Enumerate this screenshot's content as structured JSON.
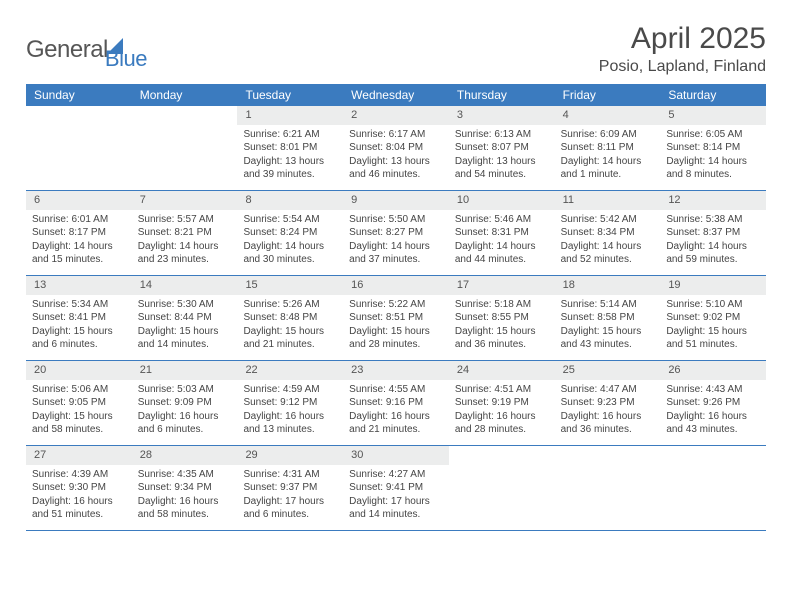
{
  "header": {
    "logo_text_1": "General",
    "logo_text_2": "Blue",
    "month_title": "April 2025",
    "location": "Posio, Lapland, Finland"
  },
  "styling": {
    "header_bg": "#3b7bbf",
    "header_text": "#ffffff",
    "daynum_bg": "#eceded",
    "body_bg": "#ffffff",
    "text_color": "#454545",
    "border_color": "#3b7bbf",
    "title_fontsize": 30,
    "location_fontsize": 16,
    "dayheader_fontsize": 12,
    "cell_fontsize": 10
  },
  "day_headers": [
    "Sunday",
    "Monday",
    "Tuesday",
    "Wednesday",
    "Thursday",
    "Friday",
    "Saturday"
  ],
  "weeks": [
    [
      {
        "num": "",
        "sunrise": "",
        "sunset": "",
        "daylight": ""
      },
      {
        "num": "",
        "sunrise": "",
        "sunset": "",
        "daylight": ""
      },
      {
        "num": "1",
        "sunrise": "Sunrise: 6:21 AM",
        "sunset": "Sunset: 8:01 PM",
        "daylight": "Daylight: 13 hours and 39 minutes."
      },
      {
        "num": "2",
        "sunrise": "Sunrise: 6:17 AM",
        "sunset": "Sunset: 8:04 PM",
        "daylight": "Daylight: 13 hours and 46 minutes."
      },
      {
        "num": "3",
        "sunrise": "Sunrise: 6:13 AM",
        "sunset": "Sunset: 8:07 PM",
        "daylight": "Daylight: 13 hours and 54 minutes."
      },
      {
        "num": "4",
        "sunrise": "Sunrise: 6:09 AM",
        "sunset": "Sunset: 8:11 PM",
        "daylight": "Daylight: 14 hours and 1 minute."
      },
      {
        "num": "5",
        "sunrise": "Sunrise: 6:05 AM",
        "sunset": "Sunset: 8:14 PM",
        "daylight": "Daylight: 14 hours and 8 minutes."
      }
    ],
    [
      {
        "num": "6",
        "sunrise": "Sunrise: 6:01 AM",
        "sunset": "Sunset: 8:17 PM",
        "daylight": "Daylight: 14 hours and 15 minutes."
      },
      {
        "num": "7",
        "sunrise": "Sunrise: 5:57 AM",
        "sunset": "Sunset: 8:21 PM",
        "daylight": "Daylight: 14 hours and 23 minutes."
      },
      {
        "num": "8",
        "sunrise": "Sunrise: 5:54 AM",
        "sunset": "Sunset: 8:24 PM",
        "daylight": "Daylight: 14 hours and 30 minutes."
      },
      {
        "num": "9",
        "sunrise": "Sunrise: 5:50 AM",
        "sunset": "Sunset: 8:27 PM",
        "daylight": "Daylight: 14 hours and 37 minutes."
      },
      {
        "num": "10",
        "sunrise": "Sunrise: 5:46 AM",
        "sunset": "Sunset: 8:31 PM",
        "daylight": "Daylight: 14 hours and 44 minutes."
      },
      {
        "num": "11",
        "sunrise": "Sunrise: 5:42 AM",
        "sunset": "Sunset: 8:34 PM",
        "daylight": "Daylight: 14 hours and 52 minutes."
      },
      {
        "num": "12",
        "sunrise": "Sunrise: 5:38 AM",
        "sunset": "Sunset: 8:37 PM",
        "daylight": "Daylight: 14 hours and 59 minutes."
      }
    ],
    [
      {
        "num": "13",
        "sunrise": "Sunrise: 5:34 AM",
        "sunset": "Sunset: 8:41 PM",
        "daylight": "Daylight: 15 hours and 6 minutes."
      },
      {
        "num": "14",
        "sunrise": "Sunrise: 5:30 AM",
        "sunset": "Sunset: 8:44 PM",
        "daylight": "Daylight: 15 hours and 14 minutes."
      },
      {
        "num": "15",
        "sunrise": "Sunrise: 5:26 AM",
        "sunset": "Sunset: 8:48 PM",
        "daylight": "Daylight: 15 hours and 21 minutes."
      },
      {
        "num": "16",
        "sunrise": "Sunrise: 5:22 AM",
        "sunset": "Sunset: 8:51 PM",
        "daylight": "Daylight: 15 hours and 28 minutes."
      },
      {
        "num": "17",
        "sunrise": "Sunrise: 5:18 AM",
        "sunset": "Sunset: 8:55 PM",
        "daylight": "Daylight: 15 hours and 36 minutes."
      },
      {
        "num": "18",
        "sunrise": "Sunrise: 5:14 AM",
        "sunset": "Sunset: 8:58 PM",
        "daylight": "Daylight: 15 hours and 43 minutes."
      },
      {
        "num": "19",
        "sunrise": "Sunrise: 5:10 AM",
        "sunset": "Sunset: 9:02 PM",
        "daylight": "Daylight: 15 hours and 51 minutes."
      }
    ],
    [
      {
        "num": "20",
        "sunrise": "Sunrise: 5:06 AM",
        "sunset": "Sunset: 9:05 PM",
        "daylight": "Daylight: 15 hours and 58 minutes."
      },
      {
        "num": "21",
        "sunrise": "Sunrise: 5:03 AM",
        "sunset": "Sunset: 9:09 PM",
        "daylight": "Daylight: 16 hours and 6 minutes."
      },
      {
        "num": "22",
        "sunrise": "Sunrise: 4:59 AM",
        "sunset": "Sunset: 9:12 PM",
        "daylight": "Daylight: 16 hours and 13 minutes."
      },
      {
        "num": "23",
        "sunrise": "Sunrise: 4:55 AM",
        "sunset": "Sunset: 9:16 PM",
        "daylight": "Daylight: 16 hours and 21 minutes."
      },
      {
        "num": "24",
        "sunrise": "Sunrise: 4:51 AM",
        "sunset": "Sunset: 9:19 PM",
        "daylight": "Daylight: 16 hours and 28 minutes."
      },
      {
        "num": "25",
        "sunrise": "Sunrise: 4:47 AM",
        "sunset": "Sunset: 9:23 PM",
        "daylight": "Daylight: 16 hours and 36 minutes."
      },
      {
        "num": "26",
        "sunrise": "Sunrise: 4:43 AM",
        "sunset": "Sunset: 9:26 PM",
        "daylight": "Daylight: 16 hours and 43 minutes."
      }
    ],
    [
      {
        "num": "27",
        "sunrise": "Sunrise: 4:39 AM",
        "sunset": "Sunset: 9:30 PM",
        "daylight": "Daylight: 16 hours and 51 minutes."
      },
      {
        "num": "28",
        "sunrise": "Sunrise: 4:35 AM",
        "sunset": "Sunset: 9:34 PM",
        "daylight": "Daylight: 16 hours and 58 minutes."
      },
      {
        "num": "29",
        "sunrise": "Sunrise: 4:31 AM",
        "sunset": "Sunset: 9:37 PM",
        "daylight": "Daylight: 17 hours and 6 minutes."
      },
      {
        "num": "30",
        "sunrise": "Sunrise: 4:27 AM",
        "sunset": "Sunset: 9:41 PM",
        "daylight": "Daylight: 17 hours and 14 minutes."
      },
      {
        "num": "",
        "sunrise": "",
        "sunset": "",
        "daylight": ""
      },
      {
        "num": "",
        "sunrise": "",
        "sunset": "",
        "daylight": ""
      },
      {
        "num": "",
        "sunrise": "",
        "sunset": "",
        "daylight": ""
      }
    ]
  ]
}
